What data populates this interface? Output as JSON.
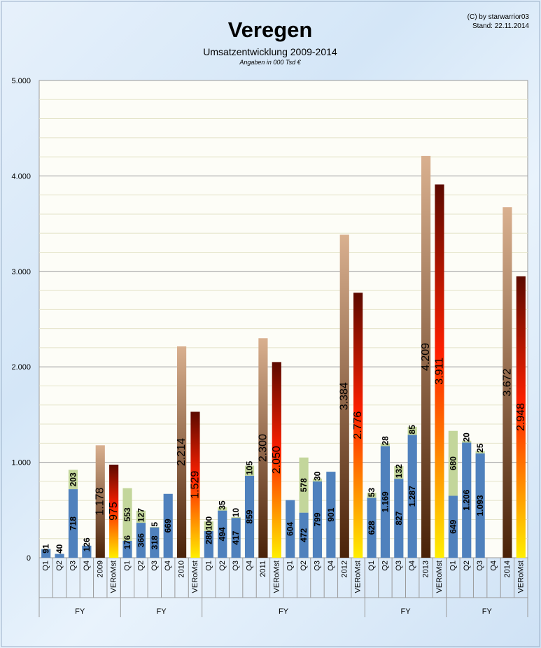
{
  "header": {
    "title": "Veregen",
    "subtitle": "Umsatzentwicklung 2009-2014",
    "note": "Angaben in 000 Tsd €",
    "credit": "(C) by starwarrior03",
    "date": "Stand: 22.11.2014"
  },
  "colors": {
    "quarter_blue": "#4f81bd",
    "quarter_green": "#c3d69b",
    "fy_gradient_top": "#d9b08f",
    "fy_gradient_bottom": "#4a2208",
    "vero_gradient_top": "#5c0a00",
    "vero_gradient_mid": "#ff2000",
    "vero_gradient_bottom": "#ffee00",
    "plot_background": "#fdfdf7"
  },
  "chart_data": {
    "type": "bar",
    "title": "Veregen",
    "subtitle": "Umsatzentwicklung 2009-2014",
    "ylim": [
      0,
      5000
    ],
    "yticks": [
      "0",
      "1.000",
      "2.000",
      "3.000",
      "4.000",
      "5.000"
    ],
    "ytick_values": [
      0,
      1000,
      2000,
      3000,
      4000,
      5000
    ],
    "grid": true,
    "groups": [
      {
        "label": "FY",
        "bars": [
          {
            "category": "Q1",
            "kind": "quarter",
            "base": 91,
            "add": 0,
            "base_label": "91",
            "add_label": ""
          },
          {
            "category": "Q2",
            "kind": "quarter",
            "base": 40,
            "add": 0,
            "base_label": "40",
            "add_label": ""
          },
          {
            "category": "Q3",
            "kind": "quarter",
            "base": 718,
            "add": 203,
            "base_label": "718",
            "add_label": "203"
          },
          {
            "category": "Q4",
            "kind": "quarter",
            "base": 126,
            "add": 0,
            "base_label": "126",
            "add_label": ""
          },
          {
            "category": "2009",
            "kind": "fy",
            "base": 1178,
            "add": 0,
            "base_label": "1.178",
            "add_label": ""
          },
          {
            "category": "VERoMst",
            "kind": "vero",
            "base": 975,
            "add": 0,
            "base_label": "975",
            "add_label": ""
          }
        ]
      },
      {
        "label": "FY",
        "bars": [
          {
            "category": "Q1",
            "kind": "quarter",
            "base": 176,
            "add": 553,
            "base_label": "176",
            "add_label": "553"
          },
          {
            "category": "Q2",
            "kind": "quarter",
            "base": 366,
            "add": 127,
            "base_label": "366",
            "add_label": "127"
          },
          {
            "category": "Q3",
            "kind": "quarter",
            "base": 318,
            "add": 5,
            "base_label": "318",
            "add_label": "5"
          },
          {
            "category": "Q4",
            "kind": "quarter",
            "base": 669,
            "add": 0,
            "base_label": "669",
            "add_label": ""
          },
          {
            "category": "2010",
            "kind": "fy",
            "base": 2214,
            "add": 0,
            "base_label": "2.214",
            "add_label": ""
          },
          {
            "category": "VERoMst",
            "kind": "vero",
            "base": 1529,
            "add": 0,
            "base_label": "1.529",
            "add_label": ""
          }
        ]
      },
      {
        "label": "FY",
        "bars": [
          {
            "category": "Q1",
            "kind": "quarter",
            "base": 280,
            "add": 100,
            "base_label": "280",
            "add_label": "100"
          },
          {
            "category": "Q2",
            "kind": "quarter",
            "base": 494,
            "add": 35,
            "base_label": "494",
            "add_label": "35"
          },
          {
            "category": "Q3",
            "kind": "quarter",
            "base": 417,
            "add": 10,
            "base_label": "417",
            "add_label": "10"
          },
          {
            "category": "Q4",
            "kind": "quarter",
            "base": 859,
            "add": 105,
            "base_label": "859",
            "add_label": "105"
          },
          {
            "category": "2011",
            "kind": "fy",
            "base": 2300,
            "add": 0,
            "base_label": "2.300",
            "add_label": ""
          },
          {
            "category": "VERoMst",
            "kind": "vero",
            "base": 2050,
            "add": 0,
            "base_label": "2.050",
            "add_label": ""
          },
          {
            "category": "Q1",
            "kind": "quarter",
            "base": 604,
            "add": 0,
            "base_label": "604",
            "add_label": ""
          },
          {
            "category": "Q2",
            "kind": "quarter",
            "base": 472,
            "add": 578,
            "base_label": "472",
            "add_label": "578"
          },
          {
            "category": "Q3",
            "kind": "quarter",
            "base": 799,
            "add": 30,
            "base_label": "799",
            "add_label": "30"
          },
          {
            "category": "Q4",
            "kind": "quarter",
            "base": 901,
            "add": 0,
            "base_label": "901",
            "add_label": ""
          },
          {
            "category": "2012",
            "kind": "fy",
            "base": 3384,
            "add": 0,
            "base_label": "3.384",
            "add_label": ""
          },
          {
            "category": "VERoMst",
            "kind": "vero",
            "base": 2776,
            "add": 0,
            "base_label": "2.776",
            "add_label": ""
          }
        ]
      },
      {
        "label": "FY",
        "bars": [
          {
            "category": "Q1",
            "kind": "quarter",
            "base": 628,
            "add": 53,
            "base_label": "628",
            "add_label": "53"
          },
          {
            "category": "Q2",
            "kind": "quarter",
            "base": 1169,
            "add": 28,
            "base_label": "1.169",
            "add_label": "28"
          },
          {
            "category": "Q3",
            "kind": "quarter",
            "base": 827,
            "add": 132,
            "base_label": "827",
            "add_label": "132"
          },
          {
            "category": "Q4",
            "kind": "quarter",
            "base": 1287,
            "add": 85,
            "base_label": "1.287",
            "add_label": "85"
          },
          {
            "category": "2013",
            "kind": "fy",
            "base": 4209,
            "add": 0,
            "base_label": "4.209",
            "add_label": ""
          },
          {
            "category": "VERoMst",
            "kind": "vero",
            "base": 3911,
            "add": 0,
            "base_label": "3.911",
            "add_label": ""
          }
        ]
      },
      {
        "label": "FY",
        "bars": [
          {
            "category": "Q1",
            "kind": "quarter",
            "base": 649,
            "add": 680,
            "base_label": "649",
            "add_label": "680"
          },
          {
            "category": "Q2",
            "kind": "quarter",
            "base": 1206,
            "add": 20,
            "base_label": "1.206",
            "add_label": "20"
          },
          {
            "category": "Q3",
            "kind": "quarter",
            "base": 1093,
            "add": 25,
            "base_label": "1.093",
            "add_label": "25"
          },
          {
            "category": "Q4",
            "kind": "quarter",
            "base": 0,
            "add": 0,
            "base_label": "",
            "add_label": ""
          },
          {
            "category": "2014",
            "kind": "fy",
            "base": 3672,
            "add": 0,
            "base_label": "3.672",
            "add_label": ""
          },
          {
            "category": "VERoMst",
            "kind": "vero",
            "base": 2948,
            "add": 0,
            "base_label": "2.948",
            "add_label": ""
          }
        ]
      }
    ]
  }
}
